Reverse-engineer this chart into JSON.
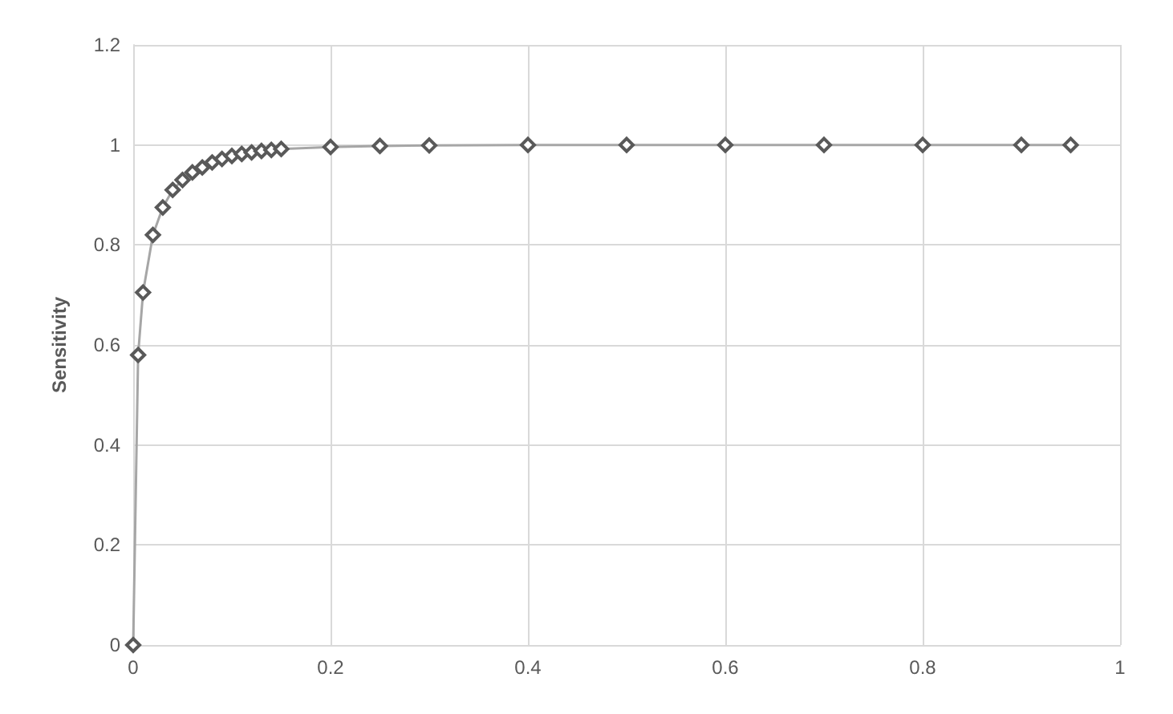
{
  "chart_data": {
    "type": "line",
    "ylabel": "Sensitivity",
    "x": [
      0,
      0.005,
      0.01,
      0.02,
      0.03,
      0.04,
      0.05,
      0.06,
      0.07,
      0.08,
      0.09,
      0.1,
      0.11,
      0.12,
      0.13,
      0.14,
      0.15,
      0.2,
      0.25,
      0.3,
      0.4,
      0.5,
      0.6,
      0.7,
      0.8,
      0.9,
      0.95
    ],
    "series": [
      {
        "color": "#595959",
        "values": [
          0,
          0.58,
          0.705,
          0.82,
          0.875,
          0.91,
          0.93,
          0.945,
          0.955,
          0.965,
          0.972,
          0.978,
          0.982,
          0.985,
          0.988,
          0.99,
          0.992,
          0.996,
          0.998,
          0.999,
          1,
          1,
          1,
          1,
          1,
          1,
          1
        ]
      }
    ],
    "xlim": [
      0,
      1
    ],
    "xticks": [
      0,
      0.2,
      0.4,
      0.6,
      0.8,
      1
    ],
    "ylim": [
      0,
      1.2
    ],
    "yticks": [
      0,
      0.2,
      0.4,
      0.6,
      0.8,
      1,
      1.2
    ],
    "grid": true,
    "marker": "diamond",
    "line_style": "solid"
  }
}
